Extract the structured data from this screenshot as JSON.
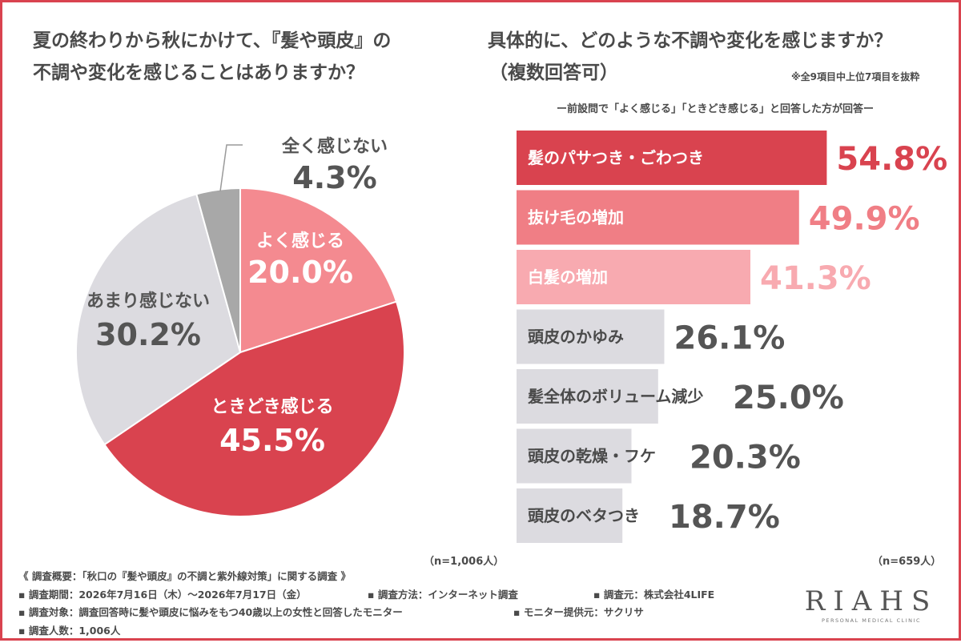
{
  "left_question": {
    "line1": "夏の終わりから秋にかけて、『髪や頭皮』の",
    "line2": "不調や変化を感じることはありますか？"
  },
  "right_question": {
    "line1": "具体的に、どのような不調や変化を感じますか？",
    "line2": "（複数回答可）"
  },
  "top_note": "※全9項目中上位7項目を抜粋",
  "respondent_note": "ー前設問で「よく感じる」「ときどき感じる」と回答した方が回答ー",
  "colors": {
    "red": "#d9434f",
    "pink": "#f07e85",
    "light_pink": "#f8aab0",
    "gray": "#dcdbe0",
    "dark_gray": "#a8a8a8",
    "text": "#4a4a4a"
  },
  "chart_data": [
    {
      "type": "pie",
      "n_label": "（n=1,006人）",
      "slices": [
        {
          "label": "よく感じる",
          "value": 20.0,
          "display": "20.0%",
          "color": "#f48a90"
        },
        {
          "label": "ときどき感じる",
          "value": 45.5,
          "display": "45.5%",
          "color": "#d9434f"
        },
        {
          "label": "あまり感じない",
          "value": 30.2,
          "display": "30.2%",
          "color": "#dcdbe0"
        },
        {
          "label": "全く感じない",
          "value": 4.3,
          "display": "4.3%",
          "color": "#a8a8a8"
        }
      ]
    },
    {
      "type": "bar",
      "orientation": "horizontal",
      "n_label": "（n=659人）",
      "categories": [
        "髪のパサつき・ごわつき",
        "抜け毛の増加",
        "白髪の増加",
        "頭皮のかゆみ",
        "髪全体のボリューム減少",
        "頭皮の乾燥・フケ",
        "頭皮のベタつき"
      ],
      "values": [
        54.8,
        49.9,
        41.3,
        26.1,
        25.0,
        20.3,
        18.7
      ],
      "display": [
        "54.8%",
        "49.9%",
        "41.3%",
        "26.1%",
        "25.0%",
        "20.3%",
        "18.7%"
      ]
    }
  ],
  "survey": {
    "title": "《 調査概要：「秋口の『髪や頭皮』の不調と紫外線対策」に関する調査 》",
    "period": "▪ 調査期間：2026年7月16日（木）～2026年7月17日（金）",
    "method": "▪ 調査方法：インターネット調査",
    "source": "▪ 調査元：株式会社4LIFE",
    "target": "▪ 調査対象：調査回答時に髪や頭皮に悩みをもつ40歳以上の女性と回答したモニター",
    "monitor": "▪ モニター提供元：サクリサ",
    "count": "▪ 調査人数：1,006人"
  },
  "logo": {
    "main": "RIAHS",
    "sub": "PERSONAL MEDICAL CLINIC"
  }
}
